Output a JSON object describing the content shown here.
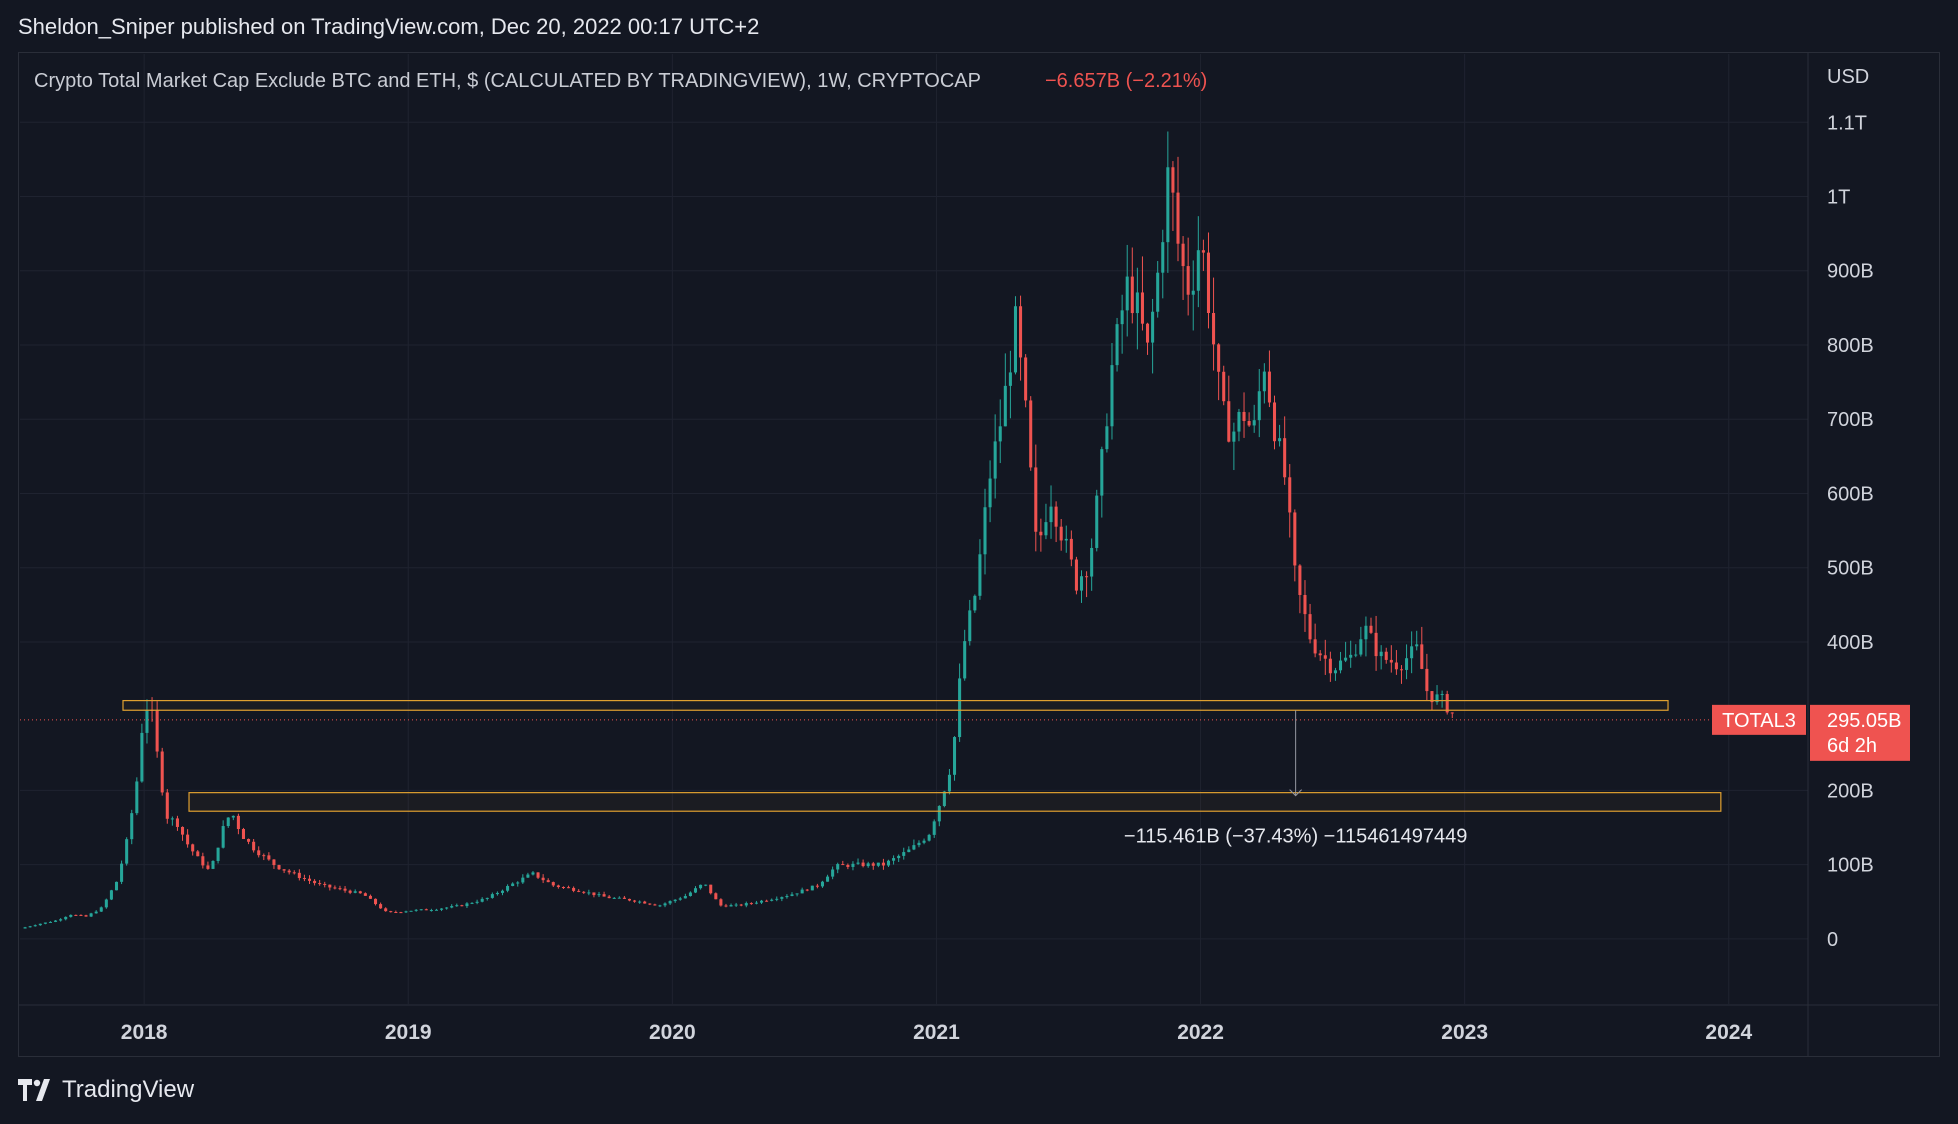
{
  "header": {
    "publisher_line": "Sheldon_Sniper published on TradingView.com, Dec 20, 2022 00:17 UTC+2"
  },
  "footer": {
    "brand": "TradingView",
    "logo_icon": "tradingview-logo-icon"
  },
  "colors": {
    "background": "#131722",
    "up": "#26a69a",
    "down": "#ef5350",
    "zone": "#e0a030",
    "text": "#d1d4dc"
  },
  "chart_data": {
    "type": "candlestick",
    "title": "Crypto Total Market Cap Exclude BTC and ETH, $ (CALCULATED BY TRADINGVIEW), 1W, CRYPTOCAP",
    "change": "−6.657B (−2.21%)",
    "currency": "USD",
    "y_ticks": [
      "1.1T",
      "1T",
      "900B",
      "800B",
      "700B",
      "600B",
      "500B",
      "400B",
      "200B",
      "100B",
      "0"
    ],
    "y_tick_values": [
      1100,
      1000,
      900,
      800,
      700,
      600,
      500,
      400,
      200,
      100,
      0
    ],
    "y_unit": "B",
    "x_ticks": [
      "2018",
      "2019",
      "2020",
      "2021",
      "2022",
      "2023",
      "2024"
    ],
    "x_tick_years": [
      2018,
      2019,
      2020,
      2021,
      2022,
      2023,
      2024
    ],
    "xlim_years": [
      2017.53,
      2024.3
    ],
    "ylim": [
      -85,
      1130
    ],
    "last_price": {
      "symbol": "TOTAL3",
      "value_label": "295.05B",
      "countdown": "6d 2h",
      "value": 295.05
    },
    "zones": [
      {
        "from_year": 2017.92,
        "to_year": 2023.77,
        "low": 308,
        "high": 321
      },
      {
        "from_year": 2018.17,
        "to_year": 2023.97,
        "low": 172,
        "high": 197
      }
    ],
    "measure": {
      "year": 2022.36,
      "from": 308,
      "to": 193,
      "label": "−115.461B (−37.43%) −115461497449"
    },
    "series": [
      {
        "values": [
          [
            2017.53,
            14
          ],
          [
            2017.6,
            20
          ],
          [
            2017.67,
            25
          ],
          [
            2017.72,
            33
          ],
          [
            2017.78,
            30
          ],
          [
            2017.84,
            42
          ],
          [
            2017.9,
            80
          ],
          [
            2017.94,
            140
          ],
          [
            2017.98,
            230
          ],
          [
            2018.0,
            320
          ],
          [
            2018.03,
            300
          ],
          [
            2018.06,
            220
          ],
          [
            2018.09,
            160
          ],
          [
            2018.12,
            160
          ],
          [
            2018.16,
            130
          ],
          [
            2018.2,
            110
          ],
          [
            2018.25,
            90
          ],
          [
            2018.3,
            150
          ],
          [
            2018.33,
            172
          ],
          [
            2018.37,
            140
          ],
          [
            2018.42,
            120
          ],
          [
            2018.5,
            98
          ],
          [
            2018.58,
            85
          ],
          [
            2018.67,
            72
          ],
          [
            2018.75,
            66
          ],
          [
            2018.83,
            60
          ],
          [
            2018.92,
            35
          ],
          [
            2019.0,
            38
          ],
          [
            2019.1,
            40
          ],
          [
            2019.2,
            45
          ],
          [
            2019.3,
            55
          ],
          [
            2019.4,
            75
          ],
          [
            2019.47,
            88
          ],
          [
            2019.55,
            72
          ],
          [
            2019.65,
            65
          ],
          [
            2019.75,
            56
          ],
          [
            2019.85,
            52
          ],
          [
            2019.95,
            45
          ],
          [
            2020.05,
            58
          ],
          [
            2020.12,
            75
          ],
          [
            2020.18,
            45
          ],
          [
            2020.25,
            45
          ],
          [
            2020.35,
            52
          ],
          [
            2020.45,
            60
          ],
          [
            2020.55,
            72
          ],
          [
            2020.62,
            98
          ],
          [
            2020.7,
            100
          ],
          [
            2020.8,
            100
          ],
          [
            2020.9,
            120
          ],
          [
            2020.97,
            140
          ],
          [
            2021.02,
            190
          ],
          [
            2021.06,
            240
          ],
          [
            2021.1,
            390
          ],
          [
            2021.15,
            470
          ],
          [
            2021.2,
            620
          ],
          [
            2021.25,
            710
          ],
          [
            2021.3,
            830
          ],
          [
            2021.34,
            700
          ],
          [
            2021.38,
            520
          ],
          [
            2021.43,
            600
          ],
          [
            2021.48,
            540
          ],
          [
            2021.53,
            480
          ],
          [
            2021.58,
            510
          ],
          [
            2021.62,
            620
          ],
          [
            2021.66,
            760
          ],
          [
            2021.72,
            880
          ],
          [
            2021.76,
            850
          ],
          [
            2021.8,
            790
          ],
          [
            2021.84,
            900
          ],
          [
            2021.88,
            1040
          ],
          [
            2021.92,
            920
          ],
          [
            2021.96,
            870
          ],
          [
            2022.0,
            950
          ],
          [
            2022.04,
            830
          ],
          [
            2022.08,
            710
          ],
          [
            2022.12,
            680
          ],
          [
            2022.16,
            710
          ],
          [
            2022.2,
            680
          ],
          [
            2022.24,
            780
          ],
          [
            2022.28,
            690
          ],
          [
            2022.32,
            620
          ],
          [
            2022.36,
            480
          ],
          [
            2022.42,
            400
          ],
          [
            2022.5,
            365
          ],
          [
            2022.57,
            380
          ],
          [
            2022.62,
            420
          ],
          [
            2022.68,
            380
          ],
          [
            2022.75,
            370
          ],
          [
            2022.82,
            390
          ],
          [
            2022.86,
            330
          ],
          [
            2022.92,
            320
          ],
          [
            2022.96,
            300
          ]
        ]
      }
    ]
  }
}
